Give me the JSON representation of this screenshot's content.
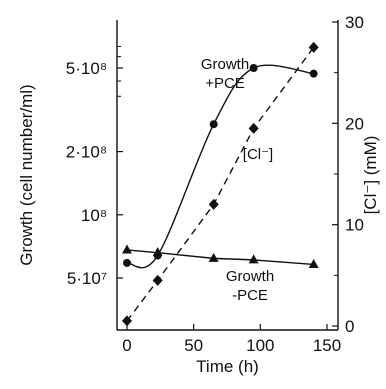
{
  "chart_data": {
    "type": "line",
    "title": "",
    "xlabel": "Time (h)",
    "ylabel_left": "Growth (cell number/ml)",
    "ylabel_right": "[Cl⁻] (mM)",
    "xlim": [
      0,
      150
    ],
    "ylim_left": [
      40000000,
      700000000
    ],
    "yscale_left": "log",
    "ylim_right": [
      0,
      30
    ],
    "grid": false,
    "legend": "none",
    "x_ticks": [
      {
        "value": 0,
        "label": "0"
      },
      {
        "value": 50,
        "label": "50"
      },
      {
        "value": 100,
        "label": "100"
      },
      {
        "value": 150,
        "label": "150"
      }
    ],
    "left_ticks": [
      {
        "value": 500000000,
        "label": "5·10⁸"
      },
      {
        "value": 200000000,
        "label": "2·10⁸"
      },
      {
        "value": 100000000,
        "label": "10⁸"
      },
      {
        "value": 50000000,
        "label": "5·10⁷"
      }
    ],
    "right_ticks": [
      {
        "value": 30,
        "label": "30"
      },
      {
        "value": 20,
        "label": "20"
      },
      {
        "value": 10,
        "label": "10"
      },
      {
        "value": 0,
        "label": "0"
      }
    ],
    "series": [
      {
        "label": "Growth +PCE",
        "axis": "left",
        "marker": "circle",
        "line": "solid-smooth",
        "x": [
          0,
          23,
          65,
          95,
          140
        ],
        "y": [
          59000000,
          64000000,
          270000000,
          500000000,
          470000000
        ],
        "annotation": [
          "Growth",
          "+PCE"
        ]
      },
      {
        "label": "[Cl⁻]",
        "axis": "right",
        "marker": "diamond",
        "line": "dashed",
        "x": [
          0,
          23,
          65,
          95,
          140
        ],
        "y": [
          0.5,
          4.5,
          12,
          19.5,
          27.5
        ],
        "annotation": [
          "[Cl⁻]"
        ]
      },
      {
        "label": "Growth -PCE",
        "axis": "left",
        "marker": "triangle",
        "line": "solid",
        "x": [
          0,
          23,
          65,
          95,
          140
        ],
        "y": [
          68000000,
          66000000,
          62000000,
          61000000,
          58000000
        ],
        "annotation": [
          "Growth",
          "-PCE"
        ]
      }
    ]
  }
}
